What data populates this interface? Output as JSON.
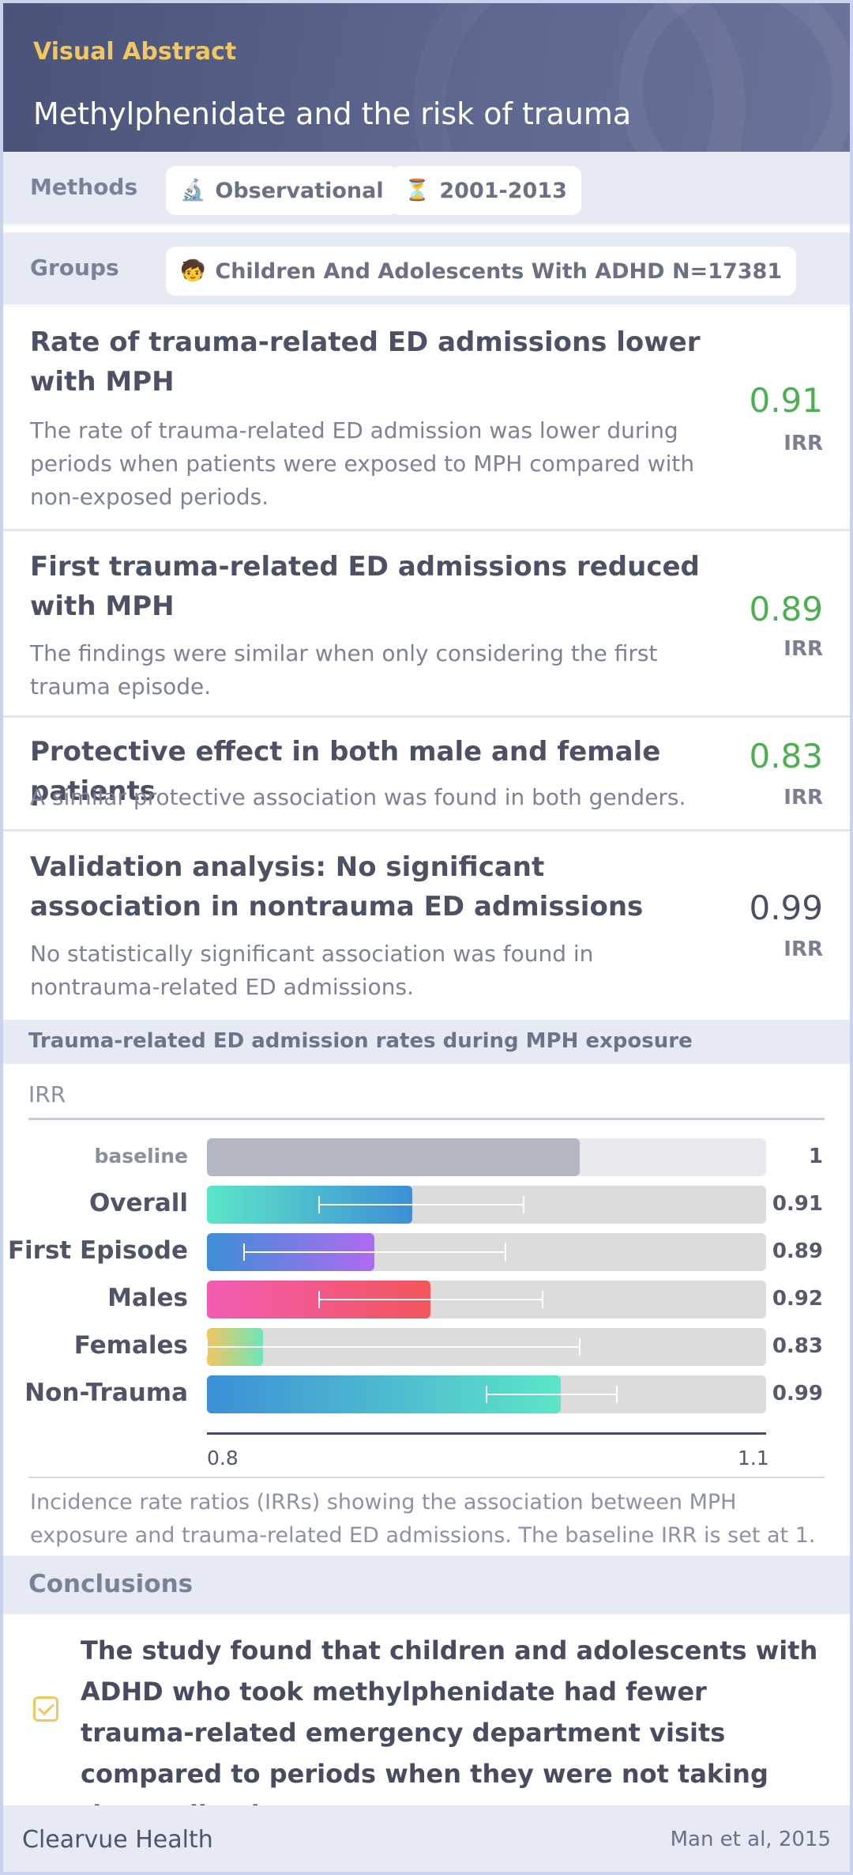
{
  "header": {
    "label": "Visual Abstract",
    "title": "Methylphenidate and the risk of trauma"
  },
  "methods": {
    "label": "Methods",
    "chips": [
      {
        "icon": "microscope-icon",
        "glyph": "🔬",
        "text": "Observational"
      },
      {
        "icon": "hourglass-icon",
        "glyph": "⏳",
        "text": "2001-2013"
      }
    ]
  },
  "groups": {
    "label": "Groups",
    "chips": [
      {
        "icon": "child-icon",
        "glyph": "🧒",
        "text": "Children And Adolescents With ADHD N=17381"
      }
    ]
  },
  "findings": [
    {
      "title": "Rate of trauma-related ED admissions lower with MPH",
      "description": "The rate of trauma-related ED admission was lower during periods when patients were exposed to MPH compared with non-exposed periods.",
      "value": "0.91",
      "unit": "IRR",
      "color": "#4caf50"
    },
    {
      "title": "First trauma-related ED admissions reduced with MPH",
      "description": "The findings were similar when only considering the first trauma episode.",
      "value": "0.89",
      "unit": "IRR",
      "color": "#4caf50"
    },
    {
      "title": "Protective effect in both male and female patients",
      "description": "A similar protective association was found in both genders.",
      "value": "0.83",
      "unit": "IRR",
      "color": "#4caf50"
    },
    {
      "title": "Validation analysis: No significant association in nontrauma ED admissions",
      "description": "No statistically significant association was found in nontrauma-related ED admissions.",
      "value": "0.99",
      "unit": "IRR",
      "color": "#4a5064"
    }
  ],
  "chart_section": {
    "heading": "Trauma-related ED admission rates during MPH exposure",
    "caption": "Incidence rate ratios (IRRs) showing the association between MPH exposure and trauma-related ED admissions. The baseline IRR is set at 1."
  },
  "chart_data": {
    "type": "bar",
    "orientation": "horizontal",
    "ylabel": "IRR",
    "xlim": [
      0.8,
      1.1
    ],
    "x_ticks": [
      "0.8",
      "1.1"
    ],
    "categories": [
      "baseline",
      "Overall",
      "First Episode",
      "Males",
      "Females",
      "Non-Trauma"
    ],
    "value_labels": [
      "1",
      "0.91",
      "0.89",
      "0.92",
      "0.83",
      "0.99"
    ],
    "values": [
      1.0,
      0.91,
      0.89,
      0.92,
      0.83,
      0.99
    ],
    "ci_low": [
      null,
      0.86,
      0.82,
      0.86,
      0.8,
      0.95
    ],
    "ci_high": [
      null,
      0.97,
      0.96,
      0.98,
      1.0,
      1.02
    ],
    "colors": [
      [
        "#b3b7c3",
        "#b3b7c3"
      ],
      [
        "#5ce6c8",
        "#3d8fd6"
      ],
      [
        "#3d8fd6",
        "#b06af2"
      ],
      [
        "#f25cb3",
        "#f2555a"
      ],
      [
        "#f2c661",
        "#6ee6b8"
      ],
      [
        "#3d8fd6",
        "#5ce6c8"
      ]
    ]
  },
  "conclusions": {
    "heading": "Conclusions",
    "text": "The study found that children and adolescents with ADHD who took methylphenidate had fewer trauma-related emergency department visits compared to periods when they were not taking the medication."
  },
  "footer": {
    "brand": "Clearvue Health",
    "citation": "Man et al, 2015"
  }
}
